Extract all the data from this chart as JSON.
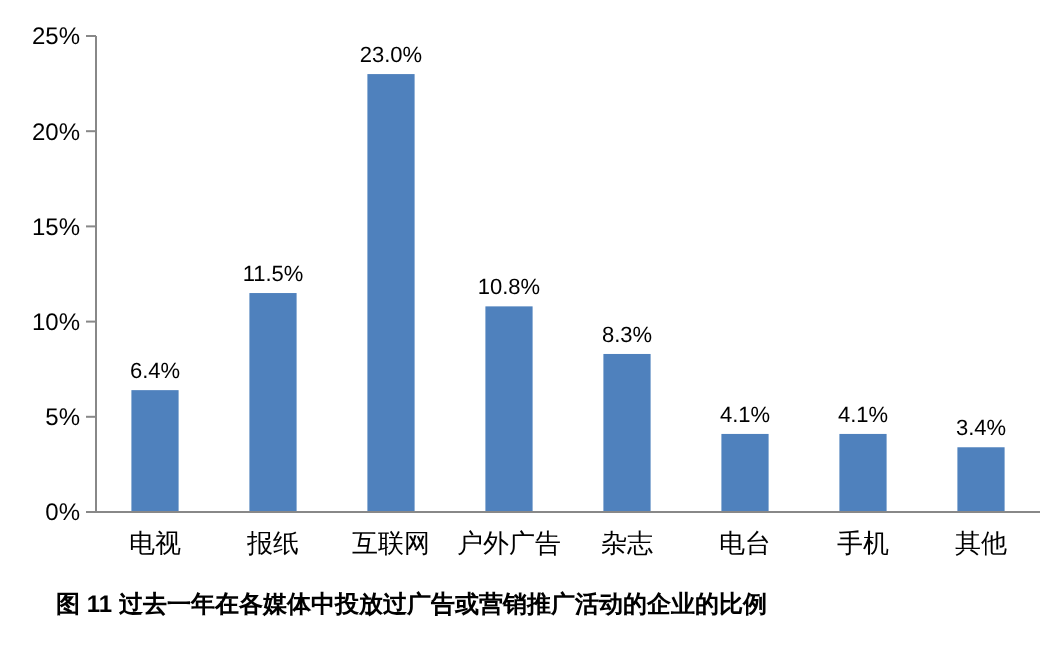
{
  "chart_data": {
    "type": "bar",
    "title": "图 11   过去一年在各媒体中投放过广告或营销推广活动的企业的比例",
    "categories": [
      "电视",
      "报纸",
      "互联网",
      "户外广告",
      "杂志",
      "电台",
      "手机",
      "其他"
    ],
    "values": [
      6.4,
      11.5,
      23.0,
      10.8,
      8.3,
      4.1,
      4.1,
      3.4
    ],
    "value_labels": [
      "6.4%",
      "11.5%",
      "23.0%",
      "10.8%",
      "8.3%",
      "4.1%",
      "4.1%",
      "3.4%"
    ],
    "color": "#4f81bd",
    "ylim": [
      0,
      25
    ],
    "yticks": [
      {
        "value": 0,
        "label": "0%"
      },
      {
        "value": 5,
        "label": "5%"
      },
      {
        "value": 10,
        "label": "10%"
      },
      {
        "value": 15,
        "label": "15%"
      },
      {
        "value": 20,
        "label": "20%"
      },
      {
        "value": 25,
        "label": "25%"
      }
    ],
    "grid": false
  }
}
